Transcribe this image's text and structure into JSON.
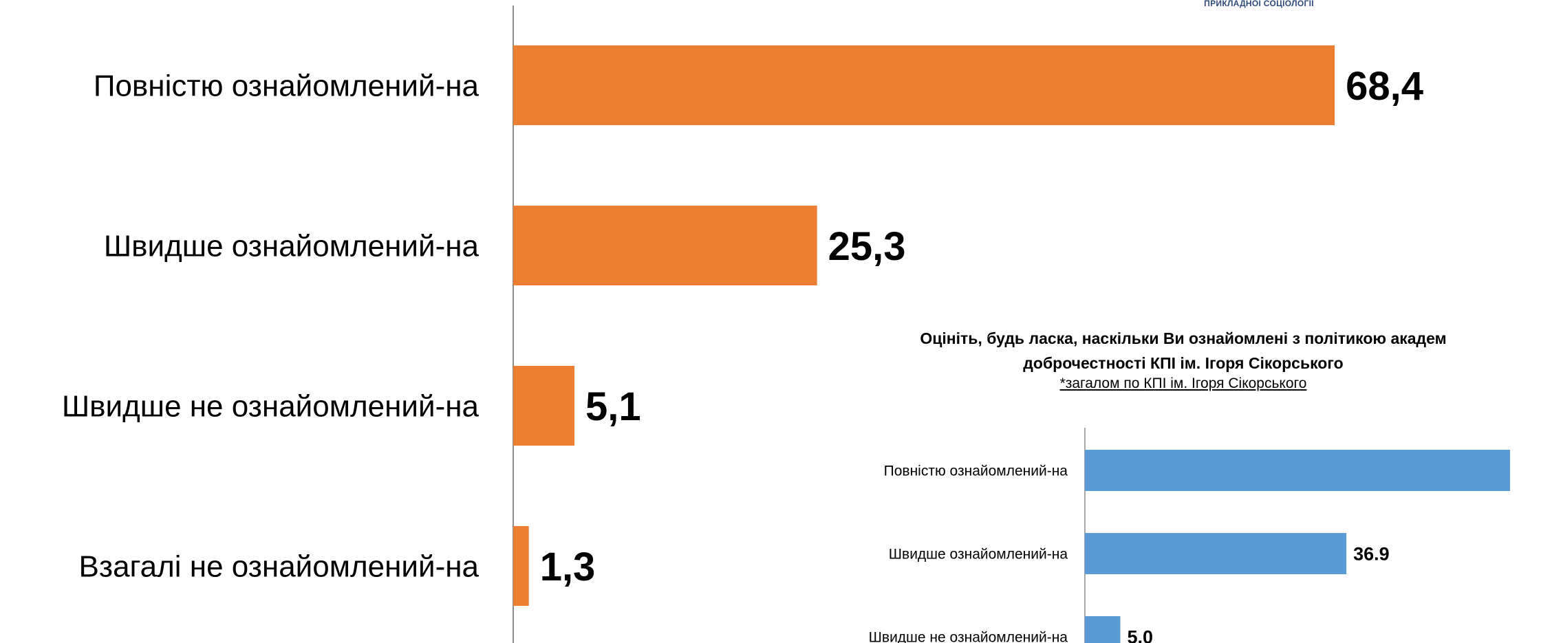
{
  "logo": {
    "text": "ПРИКЛАДНОЇ СОЦІОЛОГІЇ"
  },
  "chart_data": [
    {
      "type": "bar",
      "orientation": "horizontal",
      "title": "",
      "categories": [
        "Повністю ознайомлений-на",
        "Швидше ознайомлений-на",
        "Швидше не ознайомлений-на",
        "Взагалі не ознайомлений-на"
      ],
      "values": [
        68.4,
        25.3,
        5.1,
        1.3
      ],
      "value_labels": [
        "68,4",
        "25,3",
        "5,1",
        "1,3"
      ],
      "bar_color": "#ed7d31",
      "xlim": [
        0,
        70
      ],
      "grid": false
    },
    {
      "type": "bar",
      "orientation": "horizontal",
      "title": "Оцініть, будь ласка, наскільки Ви ознайомлені з політикою академ",
      "title_line2": "доброчестності КПІ ім. Ігоря Сікорського",
      "subtitle": "*загалом по КПІ ім. Ігоря Сікорського",
      "categories": [
        "Повністю ознайомлений-на",
        "Швидше ознайомлений-на",
        "Швидше не ознайомлений-на"
      ],
      "values": [
        60,
        36.9,
        5.0
      ],
      "value_labels": [
        "",
        "36.9",
        "5.0"
      ],
      "bar_color": "#5b9bd5",
      "xlim": [
        0,
        70
      ],
      "grid": false
    }
  ]
}
